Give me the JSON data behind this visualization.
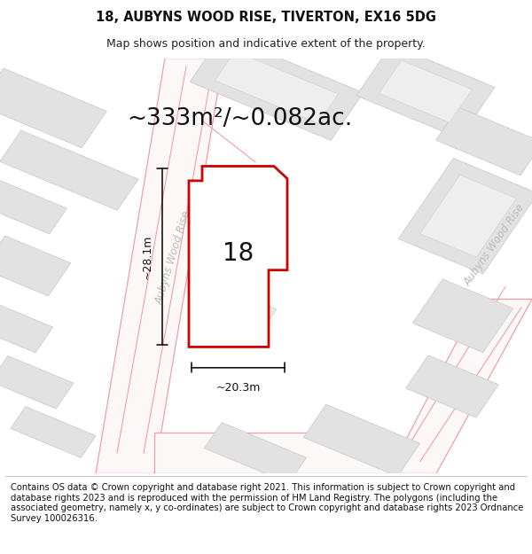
{
  "title": "18, AUBYNS WOOD RISE, TIVERTON, EX16 5DG",
  "subtitle": "Map shows position and indicative extent of the property.",
  "area_label": "~333m²/~0.082ac.",
  "number_label": "18",
  "dim_width": "~20.3m",
  "dim_height": "~28.1m",
  "street_label_left": "Aubyns Wood Rise",
  "street_label_right": "Aubyns Wood Rise",
  "footer": "Contains OS data © Crown copyright and database right 2021. This information is subject to Crown copyright and database rights 2023 and is reproduced with the permission of HM Land Registry. The polygons (including the associated geometry, namely x, y co-ordinates) are subject to Crown copyright and database rights 2023 Ordnance Survey 100026316.",
  "bg_color": "#ffffff",
  "map_bg": "#f7f7f7",
  "building_fill": "#e2e2e2",
  "building_edge": "#c8c8c8",
  "road_line_color": "#f0a0a0",
  "property_fill": "#ffffff",
  "property_edge": "#cc0000",
  "title_fontsize": 10.5,
  "subtitle_fontsize": 9,
  "area_fontsize": 19,
  "number_fontsize": 20,
  "dim_fontsize": 9,
  "street_fontsize": 8.5,
  "footer_fontsize": 7.2
}
